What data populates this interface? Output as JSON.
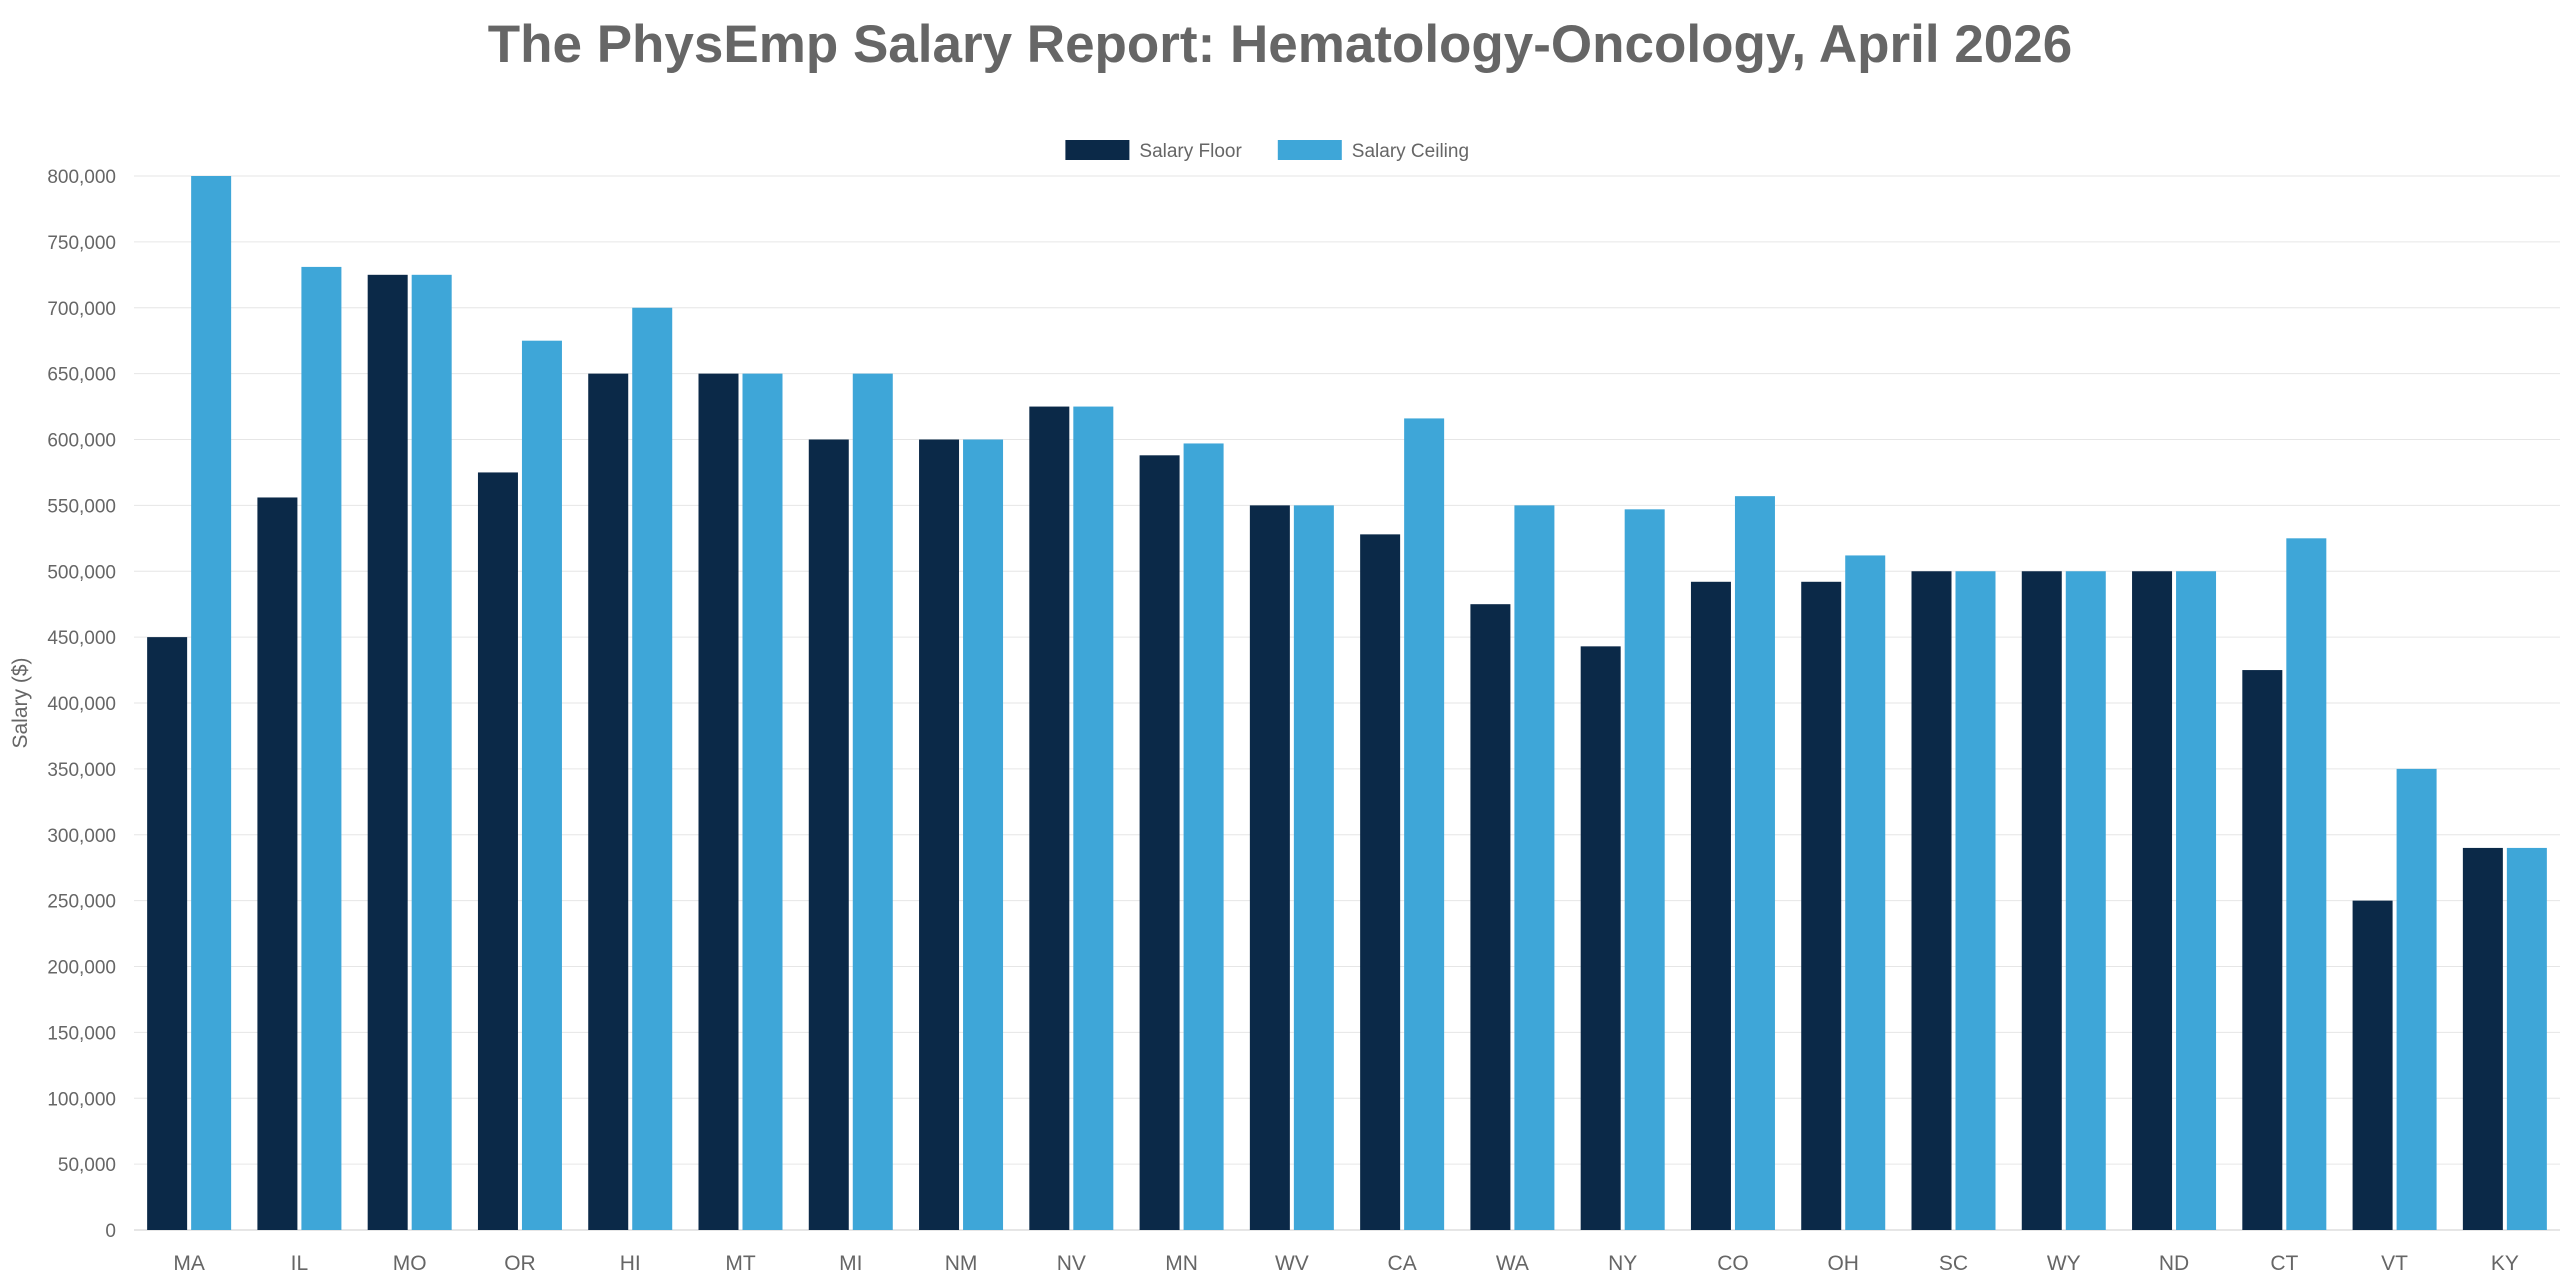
{
  "chart_data": {
    "type": "bar",
    "title": "The PhysEmp Salary Report: Hematology-Oncology, April 2026",
    "xlabel": "",
    "ylabel": "Salary ($)",
    "ylim": [
      0,
      800000
    ],
    "yticks": [
      0,
      50000,
      100000,
      150000,
      200000,
      250000,
      300000,
      350000,
      400000,
      450000,
      500000,
      550000,
      600000,
      650000,
      700000,
      750000,
      800000
    ],
    "grid": true,
    "legend_position": "top-center",
    "categories": [
      "MA",
      "IL",
      "MO",
      "OR",
      "HI",
      "MT",
      "MI",
      "NM",
      "NV",
      "MN",
      "WV",
      "CA",
      "WA",
      "NY",
      "CO",
      "OH",
      "SC",
      "WY",
      "ND",
      "CT",
      "VT",
      "KY"
    ],
    "series": [
      {
        "name": "Salary Floor",
        "color": "#0b2948",
        "values": [
          450000,
          556000,
          725000,
          575000,
          650000,
          650000,
          600000,
          600000,
          625000,
          588000,
          550000,
          528000,
          475000,
          443000,
          492000,
          492000,
          500000,
          500000,
          500000,
          425000,
          250000,
          290000
        ]
      },
      {
        "name": "Salary Ceiling",
        "color": "#3ea6d8",
        "values": [
          800000,
          731000,
          725000,
          675000,
          700000,
          650000,
          650000,
          600000,
          625000,
          597000,
          550000,
          616000,
          550000,
          547000,
          557000,
          512000,
          500000,
          500000,
          500000,
          525000,
          350000,
          290000
        ]
      }
    ]
  }
}
